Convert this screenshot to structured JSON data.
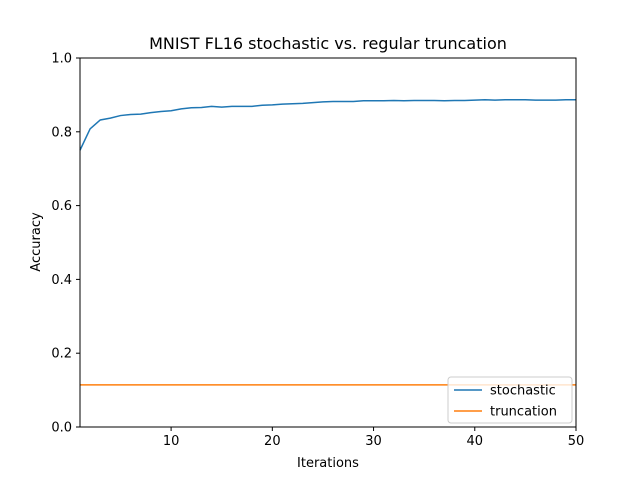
{
  "chart_data": {
    "type": "line",
    "title": "MNIST FL16 stochastic vs. regular truncation",
    "xlabel": "Iterations",
    "ylabel": "Accuracy",
    "xlim": [
      1,
      50
    ],
    "ylim": [
      0,
      1.0
    ],
    "xticks": [
      10,
      20,
      30,
      40,
      50
    ],
    "xtick_labels": [
      "10",
      "20",
      "30",
      "40",
      "50"
    ],
    "yticks": [
      0,
      0.2,
      0.4,
      0.6,
      0.8,
      1.0
    ],
    "ytick_labels": [
      "0.0",
      "0.2",
      "0.4",
      "0.6",
      "0.8",
      "1.0"
    ],
    "grid": false,
    "legend_position": "lower-right",
    "x": [
      1,
      2,
      3,
      4,
      5,
      6,
      7,
      8,
      9,
      10,
      11,
      12,
      13,
      14,
      15,
      16,
      17,
      18,
      19,
      20,
      21,
      22,
      23,
      24,
      25,
      26,
      27,
      28,
      29,
      30,
      31,
      32,
      33,
      34,
      35,
      36,
      37,
      38,
      39,
      40,
      41,
      42,
      43,
      44,
      45,
      46,
      47,
      48,
      49,
      50
    ],
    "series": [
      {
        "name": "stochastic",
        "color": "#1f77b4",
        "values": [
          0.75,
          0.808,
          0.832,
          0.837,
          0.844,
          0.847,
          0.848,
          0.852,
          0.855,
          0.857,
          0.862,
          0.865,
          0.866,
          0.869,
          0.867,
          0.869,
          0.869,
          0.869,
          0.872,
          0.873,
          0.875,
          0.876,
          0.877,
          0.879,
          0.881,
          0.882,
          0.882,
          0.882,
          0.884,
          0.884,
          0.884,
          0.885,
          0.884,
          0.885,
          0.885,
          0.885,
          0.884,
          0.885,
          0.885,
          0.886,
          0.887,
          0.886,
          0.887,
          0.887,
          0.887,
          0.886,
          0.886,
          0.886,
          0.887,
          0.887
        ]
      },
      {
        "name": "truncation",
        "color": "#ff7f0e",
        "values": [
          0.114,
          0.114,
          0.114,
          0.114,
          0.114,
          0.114,
          0.114,
          0.114,
          0.114,
          0.114,
          0.114,
          0.114,
          0.114,
          0.114,
          0.114,
          0.114,
          0.114,
          0.114,
          0.114,
          0.114,
          0.114,
          0.114,
          0.114,
          0.114,
          0.114,
          0.114,
          0.114,
          0.114,
          0.114,
          0.114,
          0.114,
          0.114,
          0.114,
          0.114,
          0.114,
          0.114,
          0.114,
          0.114,
          0.114,
          0.114,
          0.114,
          0.114,
          0.114,
          0.114,
          0.114,
          0.114,
          0.114,
          0.114,
          0.114,
          0.114
        ]
      }
    ]
  }
}
